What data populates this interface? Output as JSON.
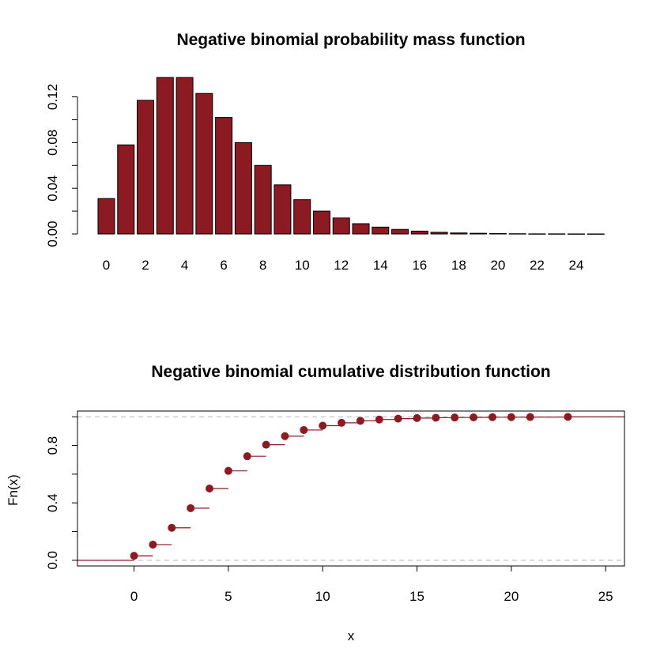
{
  "colors": {
    "bar_fill": "#8b1a22",
    "point": "#8b1a22",
    "axis": "#000000",
    "ref_line": "#b3b3b3"
  },
  "chart_data": [
    {
      "type": "bar",
      "title": "Negative binomial probability mass function",
      "xlabel": "",
      "ylabel": "",
      "categories": [
        0,
        1,
        2,
        3,
        4,
        5,
        6,
        7,
        8,
        9,
        10,
        11,
        12,
        13,
        14,
        15,
        16,
        17,
        18,
        19,
        20,
        21,
        22,
        23,
        24,
        25
      ],
      "values": [
        0.031,
        0.078,
        0.117,
        0.137,
        0.137,
        0.123,
        0.102,
        0.08,
        0.06,
        0.043,
        0.03,
        0.02,
        0.014,
        0.009,
        0.006,
        0.004,
        0.0025,
        0.0015,
        0.0009,
        0.0006,
        0.0004,
        0.0002,
        0.0001,
        8e-05,
        5e-05,
        3e-05
      ],
      "x_tick_labels": [
        "0",
        "2",
        "4",
        "6",
        "8",
        "10",
        "12",
        "14",
        "16",
        "18",
        "20",
        "22",
        "24"
      ],
      "y_ticks": [
        0,
        0.02,
        0.04,
        0.06,
        0.08,
        0.1,
        0.12
      ],
      "y_tick_labels": [
        "0.00",
        "0.04",
        "0.08",
        "0.12"
      ],
      "ylim": [
        0,
        0.137
      ],
      "grid": false,
      "legend": "none"
    },
    {
      "type": "step",
      "title": "Negative binomial cumulative distribution function",
      "xlabel": "x",
      "ylabel": "Fn(x)",
      "points": [
        {
          "x": 0,
          "y": 0.031
        },
        {
          "x": 1,
          "y": 0.109
        },
        {
          "x": 2,
          "y": 0.226
        },
        {
          "x": 3,
          "y": 0.363
        },
        {
          "x": 4,
          "y": 0.5
        },
        {
          "x": 5,
          "y": 0.623
        },
        {
          "x": 6,
          "y": 0.725
        },
        {
          "x": 7,
          "y": 0.805
        },
        {
          "x": 8,
          "y": 0.865
        },
        {
          "x": 9,
          "y": 0.908
        },
        {
          "x": 10,
          "y": 0.938
        },
        {
          "x": 11,
          "y": 0.958
        },
        {
          "x": 12,
          "y": 0.972
        },
        {
          "x": 13,
          "y": 0.981
        },
        {
          "x": 14,
          "y": 0.987
        },
        {
          "x": 15,
          "y": 0.991
        },
        {
          "x": 16,
          "y": 0.9935
        },
        {
          "x": 17,
          "y": 0.995
        },
        {
          "x": 18,
          "y": 0.996
        },
        {
          "x": 19,
          "y": 0.997
        },
        {
          "x": 20,
          "y": 0.9975
        },
        {
          "x": 21,
          "y": 0.998
        },
        {
          "x": 23,
          "y": 0.9995
        }
      ],
      "xlim": [
        -3,
        26
      ],
      "ylim": [
        -0.04,
        1.04
      ],
      "x_ticks": [
        0,
        5,
        10,
        15,
        20,
        25
      ],
      "x_tick_labels": [
        "0",
        "5",
        "10",
        "15",
        "20",
        "25"
      ],
      "y_ticks": [
        0,
        0.2,
        0.4,
        0.6,
        0.8,
        1.0
      ],
      "y_tick_labels": [
        "0.0",
        "0.4",
        "0.8"
      ],
      "reference_lines_y": [
        0,
        1
      ],
      "grid": false,
      "legend": "none"
    }
  ]
}
